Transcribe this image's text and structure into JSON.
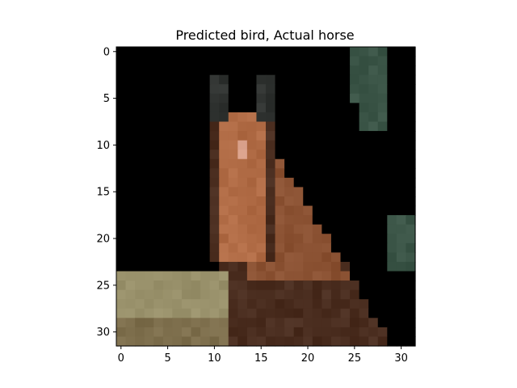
{
  "figure": {
    "title": "Predicted bird, Actual horse"
  },
  "image": {
    "subject": "horse",
    "grid_size": [
      32,
      32
    ],
    "colors": {
      "sky": "#c7e4dc",
      "sky_light": "#dff1ec",
      "ground": "#98906a",
      "ground_dark": "#7d6e4c",
      "horse_brown": "#8a5132",
      "horse_dark": "#4a2d1f",
      "horse_face": "#b06b45",
      "muzzle": "#d8a08a",
      "foliage": "#3b5547",
      "ear_dark": "#2f3230"
    }
  },
  "axes": {
    "x_ticks": [
      "0",
      "5",
      "10",
      "15",
      "20",
      "25",
      "30"
    ],
    "y_ticks": [
      "0",
      "5",
      "10",
      "15",
      "20",
      "25",
      "30"
    ],
    "xlim": [
      -0.5,
      31.5
    ],
    "ylim": [
      31.5,
      -0.5
    ]
  }
}
